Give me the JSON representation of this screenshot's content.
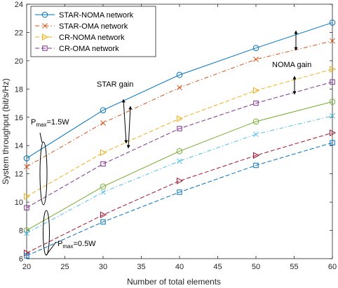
{
  "chart_data": {
    "type": "line",
    "xlabel": "Number of total elements",
    "ylabel": "System throughput (bit/s/Hz)",
    "xlim": [
      20,
      60
    ],
    "ylim": [
      6,
      24
    ],
    "x": [
      20,
      30,
      40,
      50,
      60
    ],
    "xticks": [
      "20",
      "25",
      "30",
      "35",
      "40",
      "45",
      "50",
      "55",
      "60"
    ],
    "yticks": [
      "6",
      "8",
      "10",
      "12",
      "14",
      "16",
      "18",
      "20",
      "22",
      "24"
    ],
    "grid": false,
    "legend_position": "top-left",
    "legend": [
      "STAR-NOMA network",
      "STAR-OMA network",
      "CR-NOMA network",
      "CR-OMA network"
    ],
    "series": [
      {
        "name": "STAR-NOMA network",
        "group": "P=1.5W",
        "color": "#0072BD",
        "dash": "solid",
        "marker": "circle",
        "values": [
          13.1,
          16.5,
          19.0,
          20.9,
          22.7
        ]
      },
      {
        "name": "STAR-OMA network",
        "group": "P=1.5W",
        "color": "#D95319",
        "dash": "dashdot",
        "marker": "x",
        "values": [
          12.5,
          15.6,
          18.1,
          20.1,
          21.4
        ]
      },
      {
        "name": "CR-NOMA network",
        "group": "P=1.5W",
        "color": "#EDB120",
        "dash": "dashed",
        "marker": "triangle-right",
        "values": [
          10.4,
          13.5,
          15.9,
          17.9,
          19.4
        ]
      },
      {
        "name": "CR-OMA network",
        "group": "P=1.5W",
        "color": "#7E2F8E",
        "dash": "dashed",
        "marker": "square",
        "values": [
          9.6,
          12.7,
          15.2,
          17.0,
          18.5
        ]
      },
      {
        "name": "STAR-NOMA network",
        "group": "P=0.5W",
        "color": "#77AC30",
        "dash": "solid",
        "marker": "circle",
        "values": [
          8.0,
          11.1,
          13.6,
          15.7,
          17.1
        ]
      },
      {
        "name": "STAR-OMA network",
        "group": "P=0.5W",
        "color": "#4DBEEE",
        "dash": "dashdot",
        "marker": "x",
        "values": [
          7.8,
          10.7,
          12.9,
          14.8,
          16.1
        ]
      },
      {
        "name": "CR-NOMA network",
        "group": "P=0.5W",
        "color": "#A2142F",
        "dash": "dashed",
        "marker": "triangle-right",
        "values": [
          6.4,
          9.1,
          11.5,
          13.3,
          14.9
        ]
      },
      {
        "name": "CR-OMA network",
        "group": "P=0.5W",
        "color": "#0072BD",
        "dash": "dashed",
        "marker": "square",
        "values": [
          6.2,
          8.6,
          10.7,
          12.6,
          14.2
        ]
      }
    ],
    "annotations": {
      "star_gain": "STAR gain",
      "noma_gain": "NOMA gain",
      "p_high_main": "P",
      "p_high_sub": "max",
      "p_high_value": "=1.5W",
      "p_low_main": "P",
      "p_low_sub": "max",
      "p_low_value": "=0.5W"
    }
  }
}
